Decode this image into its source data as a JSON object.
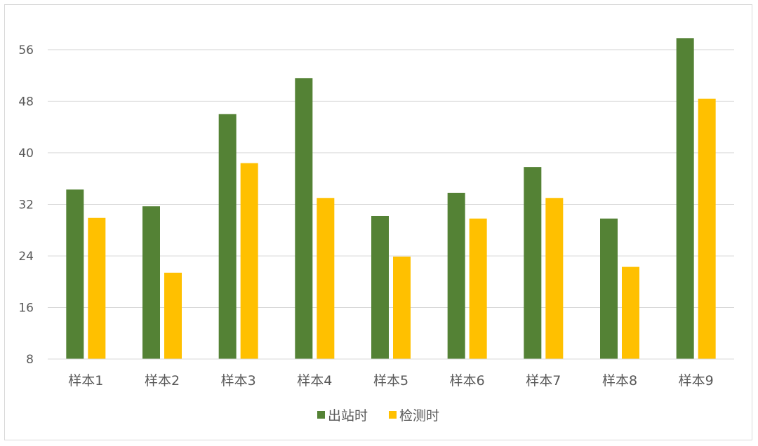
{
  "chart_data": {
    "type": "bar",
    "categories": [
      "样本1",
      "样本2",
      "样本3",
      "样本4",
      "样本5",
      "样本6",
      "样本7",
      "样本8",
      "样本9"
    ],
    "series": [
      {
        "name": "出站时",
        "color": "#548235",
        "values": [
          34.3,
          31.7,
          46.0,
          51.6,
          30.2,
          33.8,
          37.8,
          29.8,
          57.8
        ]
      },
      {
        "name": "检测时",
        "color": "#ffc000",
        "values": [
          29.9,
          21.4,
          38.4,
          33.0,
          23.9,
          29.8,
          33.0,
          22.3,
          48.4
        ]
      }
    ],
    "ylim": [
      8,
      60
    ],
    "yticks": [
      8,
      16,
      24,
      32,
      40,
      48,
      56
    ],
    "grid": true,
    "legend_position": "bottom",
    "title": "",
    "xlabel": "",
    "ylabel": ""
  }
}
